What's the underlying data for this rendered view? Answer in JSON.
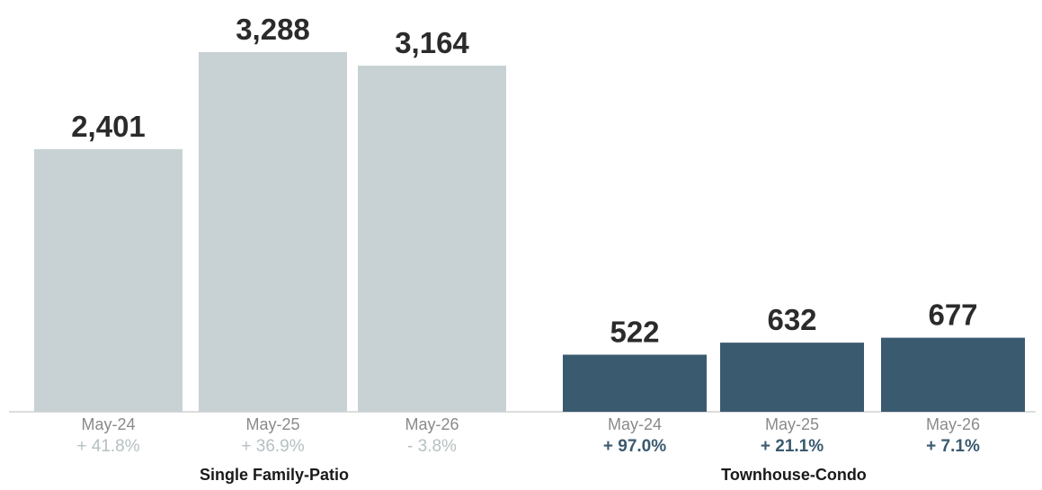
{
  "chart_data": {
    "type": "bar",
    "ylim": [
      0,
      3600
    ],
    "groups": [
      {
        "label": "Single Family-Patio",
        "color": "#c8d1d4",
        "change_color": "#b6c0c3",
        "bars": [
          {
            "category": "May-24",
            "value": 2401,
            "value_label": "2,401",
            "change": "+ 41.8%"
          },
          {
            "category": "May-25",
            "value": 3288,
            "value_label": "3,288",
            "change": "+ 36.9%"
          },
          {
            "category": "May-26",
            "value": 3164,
            "value_label": "3,164",
            "change": "- 3.8%"
          }
        ]
      },
      {
        "label": "Townhouse-Condo",
        "color": "#3a5a70",
        "change_color": "#3a5a70",
        "bars": [
          {
            "category": "May-24",
            "value": 522,
            "value_label": "522",
            "change": "+ 97.0%"
          },
          {
            "category": "May-25",
            "value": 632,
            "value_label": "632",
            "change": "+ 21.1%"
          },
          {
            "category": "May-26",
            "value": 677,
            "value_label": "677",
            "change": "+ 7.1%"
          }
        ]
      }
    ]
  }
}
